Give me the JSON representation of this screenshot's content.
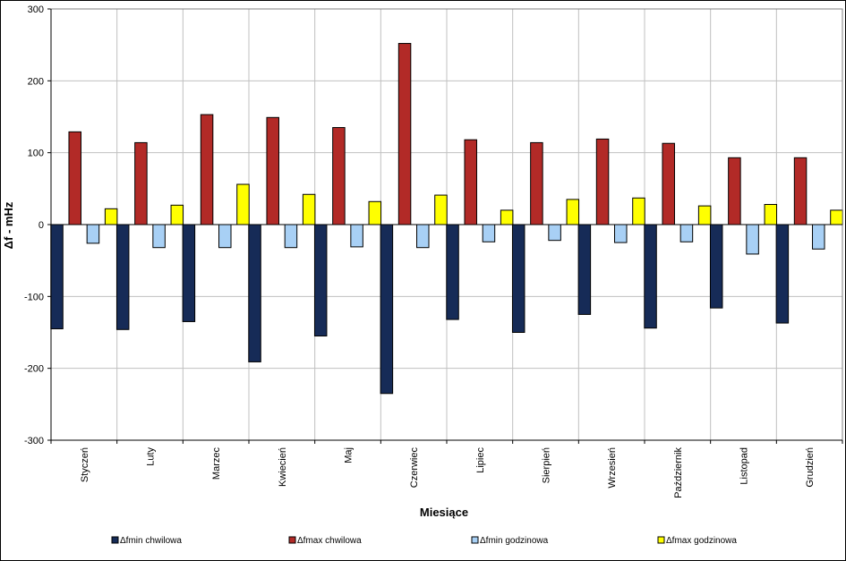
{
  "chart_data": {
    "type": "bar",
    "title": "",
    "xlabel": "Miesiące",
    "ylabel": "Δf - mHz",
    "ylim": [
      -300,
      300
    ],
    "yticks": [
      -300,
      -200,
      -100,
      0,
      100,
      200,
      300
    ],
    "grid": true,
    "legend_position": "bottom",
    "categories": [
      "Styczeń",
      "Luty",
      "Marzec",
      "Kwiecień",
      "Maj",
      "Czerwiec",
      "Lipiec",
      "Sierpień",
      "Wrzesień",
      "Październik",
      "Listopad",
      "Grudzień"
    ],
    "series": [
      {
        "name": "Δfmin chwilowa",
        "color": "#162B57",
        "values": [
          -145,
          -146,
          -135,
          -191,
          -155,
          -235,
          -132,
          -150,
          -125,
          -144,
          -116,
          -137
        ]
      },
      {
        "name": "Δfmax chwilowa",
        "color": "#B22A27",
        "values": [
          129,
          114,
          153,
          149,
          135,
          252,
          118,
          114,
          119,
          113,
          93,
          93
        ]
      },
      {
        "name": "Δfmin godzinowa",
        "color": "#A8D0F5",
        "values": [
          -26,
          -32,
          -32,
          -32,
          -31,
          -32,
          -24,
          -22,
          -25,
          -24,
          -41,
          -34
        ]
      },
      {
        "name": "Δfmax godzinowa",
        "color": "#FFFF00",
        "values": [
          22,
          27,
          56,
          42,
          32,
          41,
          20,
          35,
          37,
          26,
          28,
          20
        ]
      }
    ]
  }
}
